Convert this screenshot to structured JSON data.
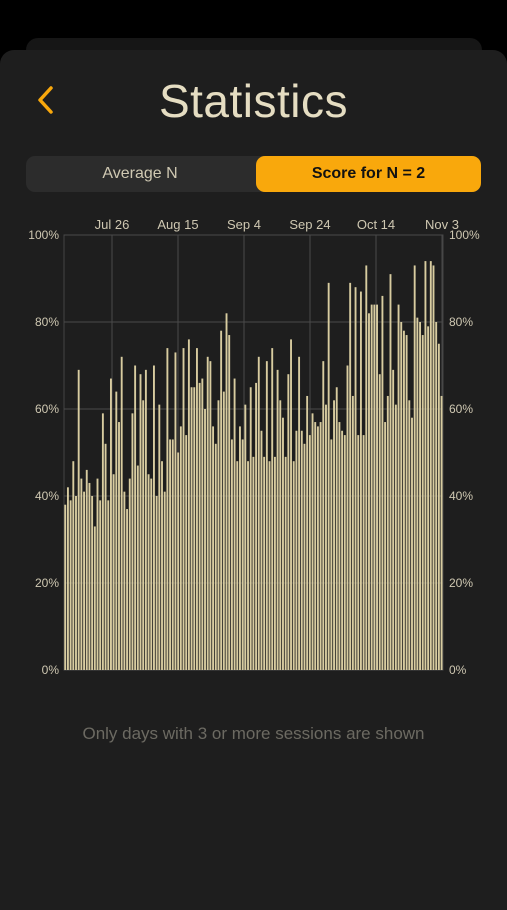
{
  "header": {
    "title": "Statistics",
    "back_icon": "chevron-left-icon",
    "accent_color": "#f9a80c"
  },
  "segmented_control": {
    "options": [
      {
        "label": "Average N",
        "selected": false
      },
      {
        "label": "Score for N = 2",
        "selected": true
      }
    ]
  },
  "chart_data": {
    "type": "bar",
    "xlabel": "",
    "ylabel": "",
    "x_ticks": [
      "Jul 26",
      "Aug 15",
      "Sep 4",
      "Sep 24",
      "Oct 14",
      "Nov 3"
    ],
    "y_ticks": [
      "0%",
      "20%",
      "40%",
      "60%",
      "80%",
      "100%"
    ],
    "ylim": [
      0,
      100
    ],
    "y_axis_both_sides": true,
    "grid": true,
    "bar_color": "#d8cca0",
    "values": [
      38,
      42,
      39,
      48,
      40,
      69,
      44,
      41,
      46,
      43,
      40,
      33,
      44,
      39,
      59,
      52,
      39,
      67,
      45,
      64,
      57,
      72,
      41,
      37,
      44,
      59,
      70,
      47,
      68,
      62,
      69,
      45,
      44,
      70,
      40,
      61,
      48,
      41,
      74,
      53,
      53,
      73,
      50,
      56,
      74,
      54,
      76,
      65,
      65,
      74,
      66,
      67,
      60,
      72,
      71,
      56,
      52,
      62,
      78,
      64,
      82,
      77,
      53,
      67,
      48,
      56,
      53,
      61,
      48,
      65,
      49,
      66,
      72,
      55,
      49,
      71,
      48,
      74,
      49,
      69,
      62,
      58,
      49,
      68,
      76,
      48,
      55,
      72,
      55,
      52,
      63,
      54,
      59,
      57,
      56,
      57,
      71,
      61,
      89,
      53,
      62,
      65,
      57,
      55,
      54,
      70,
      89,
      63,
      88,
      54,
      87,
      54,
      93,
      82,
      84,
      84,
      84,
      68,
      86,
      57,
      63,
      91,
      69,
      61,
      84,
      80,
      78,
      77,
      62,
      58,
      93,
      81,
      80,
      77,
      94,
      79,
      94,
      93,
      80,
      75,
      63
    ]
  },
  "footer_note": "Only days with 3 or more sessions are shown"
}
